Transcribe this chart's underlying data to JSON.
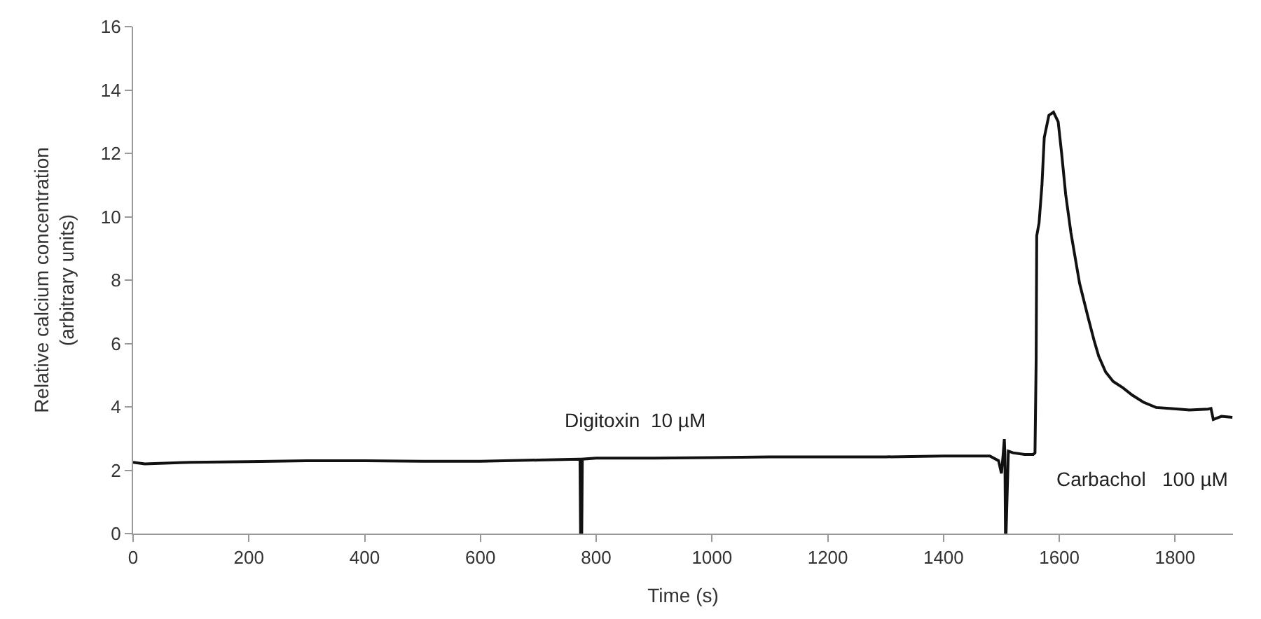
{
  "chart_data": {
    "type": "line",
    "xlabel": "Time (s)",
    "ylabel": "Relative calcium concentration\n(arbitrary units)",
    "x": [
      0,
      20,
      100,
      200,
      300,
      400,
      500,
      600,
      700,
      770,
      772,
      773,
      775,
      776,
      800,
      900,
      1000,
      1100,
      1200,
      1300,
      1400,
      1480,
      1495,
      1500,
      1503,
      1505,
      1506,
      1507,
      1508,
      1512,
      1520,
      1540,
      1555,
      1558,
      1560,
      1561,
      1565,
      1570,
      1574,
      1582,
      1590,
      1598,
      1604,
      1611,
      1620,
      1635,
      1650,
      1660,
      1668,
      1680,
      1693,
      1710,
      1726,
      1745,
      1767,
      1790,
      1825,
      1857,
      1862,
      1866,
      1880,
      1899
    ],
    "series": [
      {
        "color": "#111111",
        "values": [
          2.25,
          2.2,
          2.25,
          2.27,
          2.3,
          2.3,
          2.28,
          2.28,
          2.32,
          2.35,
          2.35,
          0,
          0,
          2.35,
          2.38,
          2.38,
          2.4,
          2.42,
          2.42,
          2.42,
          2.45,
          2.45,
          2.3,
          1.9,
          2.5,
          2.98,
          2.5,
          0,
          0,
          2.6,
          2.55,
          2.5,
          2.5,
          2.55,
          5.5,
          9.4,
          9.8,
          11.0,
          12.5,
          13.2,
          13.3,
          13.0,
          12.0,
          10.7,
          9.5,
          7.9,
          6.8,
          6.1,
          5.6,
          5.1,
          4.8,
          4.6,
          4.37,
          4.15,
          3.98,
          3.95,
          3.9,
          3.93,
          3.95,
          3.6,
          3.7,
          3.67
        ]
      }
    ],
    "xlim": [
      0,
      1900
    ],
    "ylim": [
      0,
      16
    ],
    "xticks": [
      0,
      200,
      400,
      600,
      800,
      1000,
      1200,
      1400,
      1600,
      1800
    ],
    "yticks": [
      0,
      2,
      4,
      6,
      8,
      10,
      12,
      14,
      16
    ],
    "annotations": [
      "Digitoxin  10 µM",
      "Carbachol   100 µM"
    ],
    "marker": "none",
    "line_style": "solid"
  }
}
